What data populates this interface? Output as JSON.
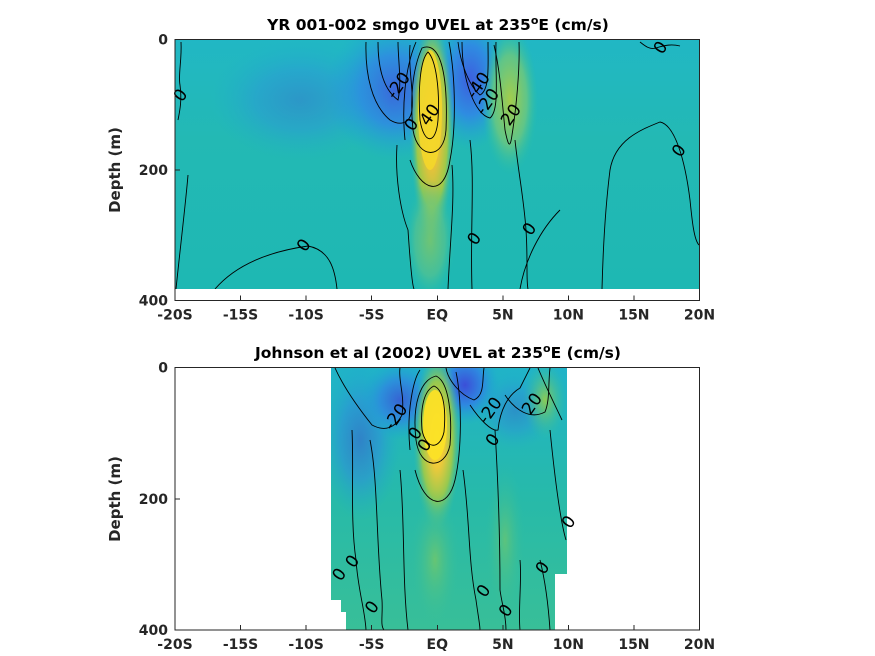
{
  "chart_data": [
    {
      "type": "heatmap",
      "title": "YR 001-002 smgo UVEL at 235",
      "title_sup": "o",
      "title_suffix": "E (cm/s)",
      "ylabel": "Depth (m)",
      "xlabel": "",
      "xlim": [
        -20,
        20
      ],
      "ylim": [
        0,
        400
      ],
      "y_reversed": true,
      "x_ticks": [
        -20,
        -15,
        -10,
        -5,
        0,
        5,
        10,
        15,
        20
      ],
      "x_tick_labels": [
        "-20S",
        "-15S",
        "-10S",
        "-5S",
        "EQ",
        "5N",
        "10N",
        "15N",
        "20N"
      ],
      "y_ticks": [
        0,
        200,
        400
      ],
      "y_tick_labels": [
        "0",
        "200",
        "400"
      ],
      "data_extent": {
        "lat": [
          -20,
          20
        ],
        "depth": [
          0,
          380
        ]
      },
      "features": [
        {
          "kind": "jet",
          "lat": 0,
          "depth": 100,
          "value": 100
        },
        {
          "kind": "core",
          "lat": -3,
          "depth": 60,
          "value": -40
        },
        {
          "kind": "core",
          "lat": 3,
          "depth": 55,
          "value": -60
        },
        {
          "kind": "core",
          "lat": 5.5,
          "depth": 80,
          "value": 20
        }
      ],
      "contour_labels": [
        {
          "text": "0",
          "lat": -19.6,
          "depth": 85
        },
        {
          "text": "-20",
          "lat": -3,
          "depth": 70
        },
        {
          "text": "40",
          "lat": -0.6,
          "depth": 115
        },
        {
          "text": "0",
          "lat": -2,
          "depth": 130
        },
        {
          "text": "-40",
          "lat": 3.1,
          "depth": 70
        },
        {
          "text": "-20",
          "lat": 3.8,
          "depth": 95
        },
        {
          "text": "20",
          "lat": 5.6,
          "depth": 115
        },
        {
          "text": "0",
          "lat": 17,
          "depth": 12
        },
        {
          "text": "0",
          "lat": 18.4,
          "depth": 170
        },
        {
          "text": "0",
          "lat": -10.2,
          "depth": 315
        },
        {
          "text": "0",
          "lat": 2.8,
          "depth": 305
        },
        {
          "text": "0",
          "lat": 7,
          "depth": 290
        }
      ]
    },
    {
      "type": "heatmap",
      "title": "Johnson et al (2002) UVEL at 235",
      "title_sup": "o",
      "title_suffix": "E (cm/s)",
      "ylabel": "Depth (m)",
      "xlabel": "",
      "xlim": [
        -20,
        20
      ],
      "ylim": [
        0,
        400
      ],
      "y_reversed": true,
      "x_ticks": [
        -20,
        -15,
        -10,
        -5,
        0,
        5,
        10,
        15,
        20
      ],
      "x_tick_labels": [
        "-20S",
        "-15S",
        "-10S",
        "-5S",
        "EQ",
        "5N",
        "10N",
        "15N",
        "20N"
      ],
      "y_ticks": [
        0,
        200,
        400
      ],
      "y_tick_labels": [
        "0",
        "200",
        "400"
      ],
      "data_extent": {
        "lat": [
          -8,
          10
        ],
        "depth": [
          0,
          400
        ]
      },
      "features": [
        {
          "kind": "jet",
          "lat": 0,
          "depth": 90,
          "value": 110
        },
        {
          "kind": "core",
          "lat": -2,
          "depth": 20,
          "value": -30
        },
        {
          "kind": "core",
          "lat": 2,
          "depth": 15,
          "value": -60
        },
        {
          "kind": "core",
          "lat": 7,
          "depth": 30,
          "value": 20
        }
      ],
      "contour_labels": [
        {
          "text": "-20",
          "lat": -3.2,
          "depth": 75
        },
        {
          "text": "-20",
          "lat": 4,
          "depth": 65
        },
        {
          "text": "20",
          "lat": 7.2,
          "depth": 55
        },
        {
          "text": "0",
          "lat": -1.7,
          "depth": 100
        },
        {
          "text": "0",
          "lat": -1,
          "depth": 118
        },
        {
          "text": "0",
          "lat": 4.2,
          "depth": 110
        },
        {
          "text": "0",
          "lat": 10,
          "depth": 235
        },
        {
          "text": "0",
          "lat": -6.5,
          "depth": 295
        },
        {
          "text": "0",
          "lat": -7.5,
          "depth": 315
        },
        {
          "text": "0",
          "lat": 8,
          "depth": 305
        },
        {
          "text": "0",
          "lat": -5,
          "depth": 365
        },
        {
          "text": "0",
          "lat": 3.5,
          "depth": 340
        },
        {
          "text": "0",
          "lat": 5.2,
          "depth": 370
        }
      ]
    }
  ]
}
